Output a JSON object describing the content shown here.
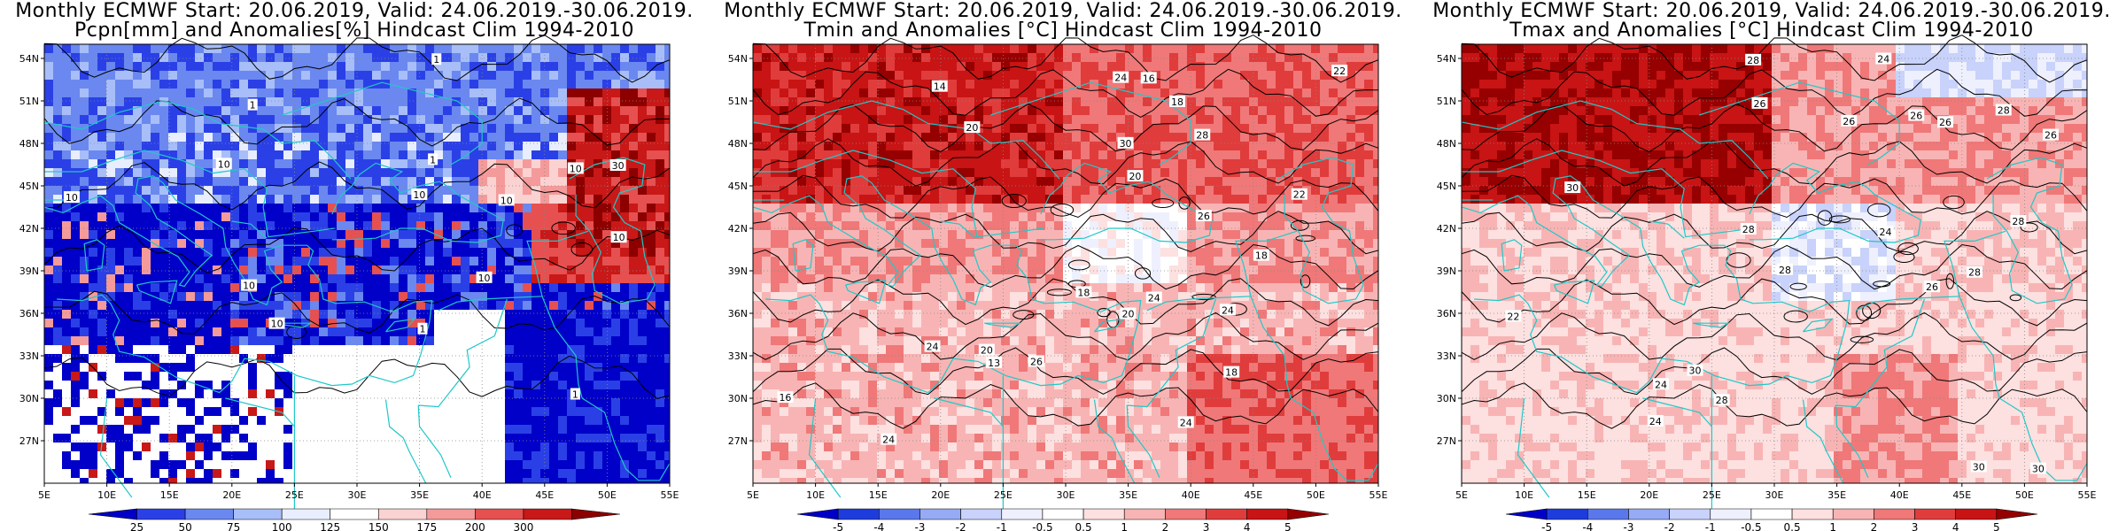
{
  "panels": [
    {
      "title_line1": "Monthly ECMWF Start: 20.06.2019, Valid: 24.06.2019.-30.06.2019.",
      "title_line2": "Pcpn[mm] and Anomalies[%] Hindcast Clim 1994-2010",
      "scheme": "precip",
      "colorbar_ticks": [
        "25",
        "50",
        "75",
        "100",
        "125",
        "150",
        "175",
        "200",
        "300"
      ],
      "colorbar_colors": [
        "#0000c8",
        "#2a40e6",
        "#6a88f0",
        "#a8bef8",
        "#e8eefe",
        "#ffffff",
        "#fbd2d2",
        "#f49a9a",
        "#e65050",
        "#c81818",
        "#8c0000"
      ],
      "contour_labels": [
        "10",
        "10",
        "10",
        "10",
        "10",
        "10",
        "1",
        "1",
        "1",
        "10",
        "30",
        "10",
        "1",
        "10",
        "1"
      ]
    },
    {
      "title_line1": "Monthly ECMWF Start: 20.06.2019, Valid: 24.06.2019.-30.06.2019.",
      "title_line2": "Tmin and Anomalies [°C] Hindcast Clim 1994-2010",
      "scheme": "temp",
      "colorbar_ticks": [
        "-5",
        "-4",
        "-3",
        "-2",
        "-1",
        "-0.5",
        "0.5",
        "1",
        "2",
        "3",
        "4",
        "5"
      ],
      "colorbar_colors": [
        "#0000c8",
        "#1e3cdc",
        "#5a78ec",
        "#96aaf6",
        "#c8d2fa",
        "#eef0fe",
        "#ffffff",
        "#fde0e0",
        "#f8b4b4",
        "#f07878",
        "#e03c3c",
        "#c81414",
        "#960000"
      ],
      "contour_labels": [
        "14",
        "18",
        "16",
        "13",
        "16",
        "18",
        "20",
        "18",
        "20",
        "24",
        "20",
        "18",
        "24",
        "22",
        "26",
        "28",
        "30",
        "24",
        "22",
        "24",
        "26",
        "20",
        "24",
        "24"
      ]
    },
    {
      "title_line1": "Monthly ECMWF Start: 20.06.2019, Valid: 24.06.2019.-30.06.2019.",
      "title_line2": "Tmax and Anomalies [°C] Hindcast Clim 1994-2010",
      "scheme": "temp",
      "colorbar_ticks": [
        "-5",
        "-4",
        "-3",
        "-2",
        "-1",
        "-0.5",
        "0.5",
        "1",
        "2",
        "3",
        "4",
        "5"
      ],
      "colorbar_colors": [
        "#0000c8",
        "#1e3cdc",
        "#5a78ec",
        "#96aaf6",
        "#c8d2fa",
        "#eef0fe",
        "#ffffff",
        "#fde0e0",
        "#f8b4b4",
        "#f07878",
        "#e03c3c",
        "#c81414",
        "#960000"
      ],
      "contour_labels": [
        "24",
        "22",
        "24",
        "26",
        "28",
        "30",
        "28",
        "26",
        "30",
        "28",
        "26",
        "24",
        "28",
        "26",
        "28",
        "30",
        "28",
        "26",
        "28",
        "26",
        "30",
        "24"
      ]
    }
  ],
  "lat_labels": [
    "54N",
    "51N",
    "48N",
    "45N",
    "42N",
    "39N",
    "36N",
    "33N",
    "30N",
    "27N"
  ],
  "lon_labels": [
    "5E",
    "10E",
    "15E",
    "20E",
    "25E",
    "30E",
    "35E",
    "40E",
    "45E",
    "50E",
    "55E"
  ]
}
